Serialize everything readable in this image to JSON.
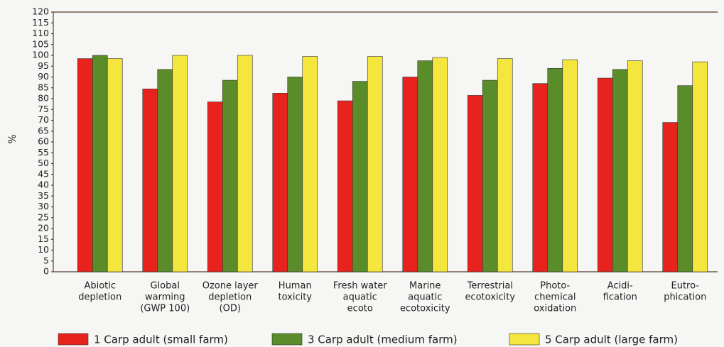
{
  "chart_data": {
    "type": "bar",
    "y_label": "%",
    "categories": [
      [
        "Abiotic",
        "depletion"
      ],
      [
        "Global",
        "warming",
        "(GWP  100)"
      ],
      [
        "Ozone layer",
        "depletion",
        "(OD)"
      ],
      [
        "Human",
        "toxicity"
      ],
      [
        "Fresh water",
        "aquatic",
        "ecoto"
      ],
      [
        "Marine",
        "aquatic",
        "ecotoxicity"
      ],
      [
        "Terrestrial",
        "ecotoxicity"
      ],
      [
        "Photo-",
        "chemical",
        "oxidation"
      ],
      [
        "Acidi-",
        "fication"
      ],
      [
        "Eutro-",
        "phication"
      ]
    ],
    "series": [
      {
        "name": "1 Carp adult (small farm)",
        "color": "#e8231e",
        "values": [
          98.5,
          84.5,
          78.5,
          82.5,
          79,
          90,
          81.5,
          87,
          89.5,
          69
        ]
      },
      {
        "name": "3 Carp adult (medium farm)",
        "color": "#5b8c2a",
        "values": [
          100,
          93.5,
          88.5,
          90,
          88,
          97.5,
          88.5,
          94,
          93.5,
          86
        ]
      },
      {
        "name": "5 Carp adult (large farm)",
        "color": "#f4e63c",
        "values": [
          98.5,
          100,
          100,
          99.5,
          99.5,
          99,
          98.5,
          98,
          97.5,
          97
        ]
      }
    ],
    "ylim": [
      0,
      120
    ],
    "yticks": [
      0,
      5,
      10,
      15,
      20,
      25,
      30,
      35,
      40,
      45,
      50,
      55,
      60,
      65,
      70,
      75,
      80,
      85,
      90,
      95,
      100,
      105,
      110,
      115,
      120
    ],
    "grid": false
  }
}
